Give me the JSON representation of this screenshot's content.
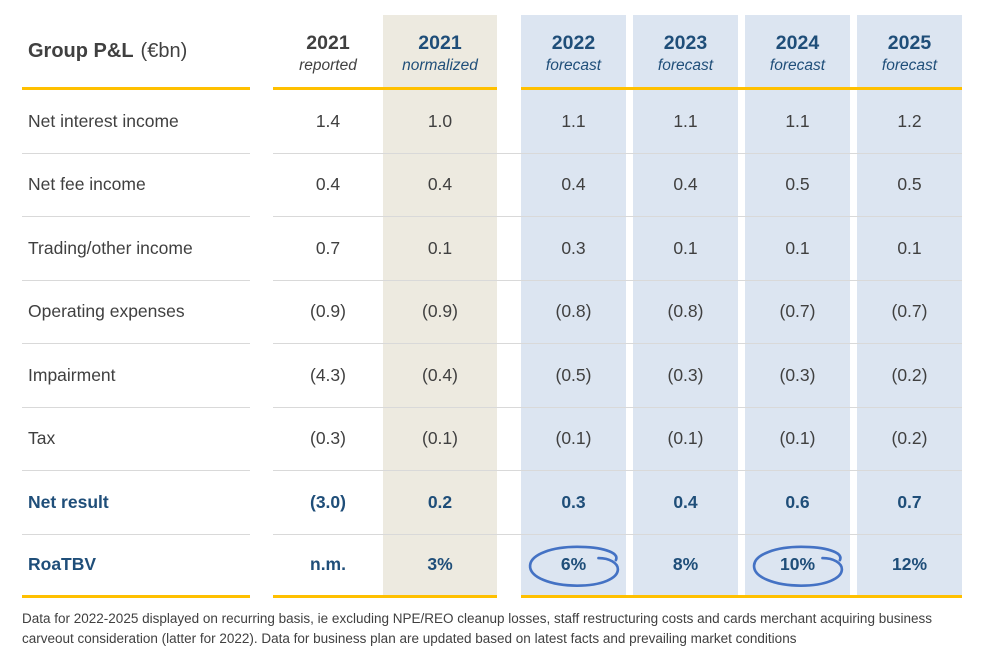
{
  "title": {
    "main": "Group P&L",
    "unit": "(€bn)"
  },
  "footnote": "Data for 2022-2025 displayed on recurring basis, ie excluding NPE/REO cleanup losses, staff restructuring costs and cards merchant acquiring business carveout consideration (latter for 2022). Data for business plan are updated based on latest facts and prevailing market conditions",
  "chart_data": {
    "type": "table",
    "title": "Group P&L (€bn)",
    "columns": [
      {
        "year": "2021",
        "sub": "reported",
        "style": "plain"
      },
      {
        "year": "2021",
        "sub": "normalized",
        "style": "beige"
      },
      {
        "year": "2022",
        "sub": "forecast",
        "style": "blue"
      },
      {
        "year": "2023",
        "sub": "forecast",
        "style": "blue"
      },
      {
        "year": "2024",
        "sub": "forecast",
        "style": "blue"
      },
      {
        "year": "2025",
        "sub": "forecast",
        "style": "blue"
      }
    ],
    "rows": [
      {
        "label": "Net interest income",
        "bold": false,
        "values": [
          "1.4",
          "1.0",
          "1.1",
          "1.1",
          "1.1",
          "1.2"
        ]
      },
      {
        "label": "Net fee income",
        "bold": false,
        "values": [
          "0.4",
          "0.4",
          "0.4",
          "0.4",
          "0.5",
          "0.5"
        ]
      },
      {
        "label": "Trading/other income",
        "bold": false,
        "values": [
          "0.7",
          "0.1",
          "0.3",
          "0.1",
          "0.1",
          "0.1"
        ]
      },
      {
        "label": "Operating expenses",
        "bold": false,
        "values": [
          "(0.9)",
          "(0.9)",
          "(0.8)",
          "(0.8)",
          "(0.7)",
          "(0.7)"
        ]
      },
      {
        "label": "Impairment",
        "bold": false,
        "values": [
          "(4.3)",
          "(0.4)",
          "(0.5)",
          "(0.3)",
          "(0.3)",
          "(0.2)"
        ]
      },
      {
        "label": "Tax",
        "bold": false,
        "values": [
          "(0.3)",
          "(0.1)",
          "(0.1)",
          "(0.1)",
          "(0.1)",
          "(0.2)"
        ]
      },
      {
        "label": "Net result",
        "bold": true,
        "values": [
          "(3.0)",
          "0.2",
          "0.3",
          "0.4",
          "0.6",
          "0.7"
        ]
      },
      {
        "label": "RoaTBV",
        "bold": true,
        "values": [
          "n.m.",
          "3%",
          "6%",
          "8%",
          "10%",
          "12%"
        ],
        "circled_value_indexes": [
          2,
          4
        ]
      }
    ],
    "annotations": [
      {
        "type": "hand-drawn-circle",
        "row": "RoaTBV",
        "column": "2022 forecast",
        "value": "6%"
      },
      {
        "type": "hand-drawn-circle",
        "row": "RoaTBV",
        "column": "2024 forecast",
        "value": "10%"
      }
    ],
    "layout": {
      "grid": "off",
      "header_rule": "yellow",
      "bottom_rule": "yellow"
    }
  },
  "colors": {
    "accent_yellow": "#FFC000",
    "navy": "#1F4E79",
    "dark_text": "#404040",
    "beige_column": "#EDEAE0",
    "blue_column": "#DCE5F1",
    "divider": "#D9D9D9",
    "circle_annotation": "#4472C4"
  }
}
